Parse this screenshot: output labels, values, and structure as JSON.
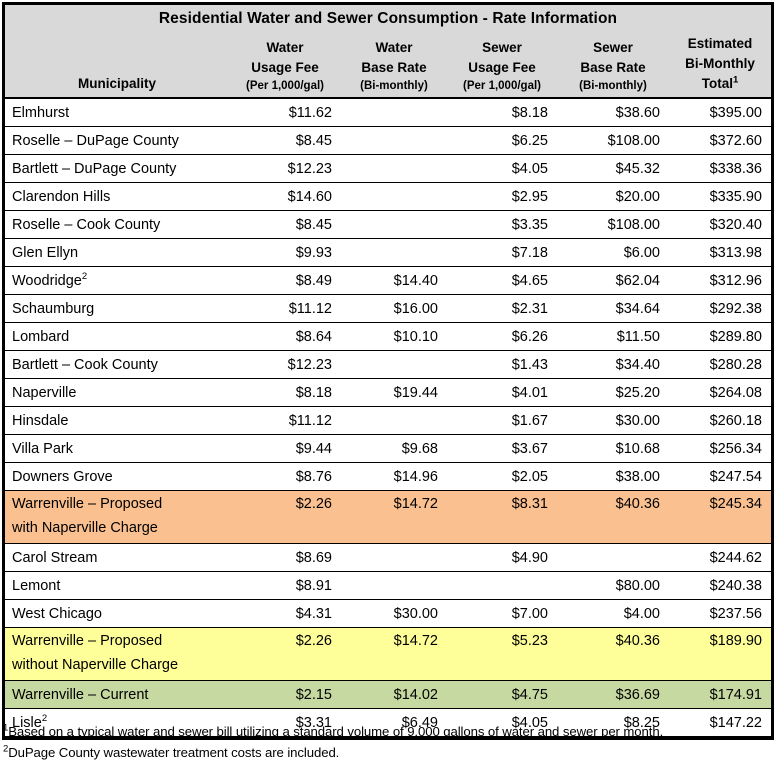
{
  "title": "Residential Water and Sewer Consumption - Rate Information",
  "header": {
    "columns": [
      {
        "lines": [
          "Municipality"
        ],
        "sup": ""
      },
      {
        "lines": [
          "Water",
          "Usage Fee",
          "(Per 1,000/gal)"
        ],
        "sup": ""
      },
      {
        "lines": [
          "Water",
          "Base Rate",
          "(Bi-monthly)"
        ],
        "sup": ""
      },
      {
        "lines": [
          "Sewer",
          "Usage Fee",
          "(Per 1,000/gal)"
        ],
        "sup": ""
      },
      {
        "lines": [
          "Sewer",
          "Base Rate",
          "(Bi-monthly)"
        ],
        "sup": ""
      },
      {
        "lines": [
          "Estimated",
          "Bi-Monthly",
          "Total"
        ],
        "sup": "1"
      }
    ]
  },
  "table": {
    "rows": [
      {
        "municipality": "Elmhurst",
        "sup": "",
        "water_usage": "$11.62",
        "water_base": "",
        "sewer_usage": "$8.18",
        "sewer_base": "$38.60",
        "total": "$395.00",
        "highlight": "none"
      },
      {
        "municipality": "Roselle – DuPage County",
        "sup": "",
        "water_usage": "$8.45",
        "water_base": "",
        "sewer_usage": "$6.25",
        "sewer_base": "$108.00",
        "total": "$372.60",
        "highlight": "none"
      },
      {
        "municipality": "Bartlett – DuPage County",
        "sup": "",
        "water_usage": "$12.23",
        "water_base": "",
        "sewer_usage": "$4.05",
        "sewer_base": "$45.32",
        "total": "$338.36",
        "highlight": "none"
      },
      {
        "municipality": "Clarendon Hills",
        "sup": "",
        "water_usage": "$14.60",
        "water_base": "",
        "sewer_usage": "$2.95",
        "sewer_base": "$20.00",
        "total": "$335.90",
        "highlight": "none"
      },
      {
        "municipality": "Roselle – Cook County",
        "sup": "",
        "water_usage": "$8.45",
        "water_base": "",
        "sewer_usage": "$3.35",
        "sewer_base": "$108.00",
        "total": "$320.40",
        "highlight": "none"
      },
      {
        "municipality": "Glen Ellyn",
        "sup": "",
        "water_usage": "$9.93",
        "water_base": "",
        "sewer_usage": "$7.18",
        "sewer_base": "$6.00",
        "total": "$313.98",
        "highlight": "none"
      },
      {
        "municipality": "Woodridge",
        "sup": "2",
        "water_usage": "$8.49",
        "water_base": "$14.40",
        "sewer_usage": "$4.65",
        "sewer_base": "$62.04",
        "total": "$312.96",
        "highlight": "none"
      },
      {
        "municipality": "Schaumburg",
        "sup": "",
        "water_usage": "$11.12",
        "water_base": "$16.00",
        "sewer_usage": "$2.31",
        "sewer_base": "$34.64",
        "total": "$292.38",
        "highlight": "none"
      },
      {
        "municipality": "Lombard",
        "sup": "",
        "water_usage": "$8.64",
        "water_base": "$10.10",
        "sewer_usage": "$6.26",
        "sewer_base": "$11.50",
        "total": "$289.80",
        "highlight": "none"
      },
      {
        "municipality": "Bartlett – Cook County",
        "sup": "",
        "water_usage": "$12.23",
        "water_base": "",
        "sewer_usage": "$1.43",
        "sewer_base": "$34.40",
        "total": "$280.28",
        "highlight": "none"
      },
      {
        "municipality": "Naperville",
        "sup": "",
        "water_usage": "$8.18",
        "water_base": "$19.44",
        "sewer_usage": "$4.01",
        "sewer_base": "$25.20",
        "total": "$264.08",
        "highlight": "none"
      },
      {
        "municipality": "Hinsdale",
        "sup": "",
        "water_usage": "$11.12",
        "water_base": "",
        "sewer_usage": "$1.67",
        "sewer_base": "$30.00",
        "total": "$260.18",
        "highlight": "none"
      },
      {
        "municipality": "Villa Park",
        "sup": "",
        "water_usage": "$9.44",
        "water_base": "$9.68",
        "sewer_usage": "$3.67",
        "sewer_base": "$10.68",
        "total": "$256.34",
        "highlight": "none"
      },
      {
        "municipality": "Downers Grove",
        "sup": "",
        "water_usage": "$8.76",
        "water_base": "$14.96",
        "sewer_usage": "$2.05",
        "sewer_base": "$38.00",
        "total": "$247.54",
        "highlight": "none"
      },
      {
        "municipality": "Warrenville – Proposed\nwith Naperville Charge",
        "sup": "",
        "water_usage": "$2.26",
        "water_base": "$14.72",
        "sewer_usage": "$8.31",
        "sewer_base": "$40.36",
        "total": "$245.34",
        "highlight": "orange"
      },
      {
        "municipality": "Carol Stream",
        "sup": "",
        "water_usage": "$8.69",
        "water_base": "",
        "sewer_usage": "$4.90",
        "sewer_base": "",
        "total": "$244.62",
        "highlight": "none"
      },
      {
        "municipality": "Lemont",
        "sup": "",
        "water_usage": "$8.91",
        "water_base": "",
        "sewer_usage": "",
        "sewer_base": "$80.00",
        "total": "$240.38",
        "highlight": "none"
      },
      {
        "municipality": "West Chicago",
        "sup": "",
        "water_usage": "$4.31",
        "water_base": "$30.00",
        "sewer_usage": "$7.00",
        "sewer_base": "$4.00",
        "total": "$237.56",
        "highlight": "none"
      },
      {
        "municipality": "Warrenville – Proposed\nwithout Naperville Charge",
        "sup": "",
        "water_usage": "$2.26",
        "water_base": "$14.72",
        "sewer_usage": "$5.23",
        "sewer_base": "$40.36",
        "total": "$189.90",
        "highlight": "yellow"
      },
      {
        "municipality": "Warrenville –  Current",
        "sup": "",
        "water_usage": "$2.15",
        "water_base": "$14.02",
        "sewer_usage": "$4.75",
        "sewer_base": "$36.69",
        "total": "$174.91",
        "highlight": "green"
      },
      {
        "municipality": "Lisle",
        "sup": "2",
        "water_usage": "$3.31",
        "water_base": "$6.49",
        "sewer_usage": "$4.05",
        "sewer_base": "$8.25",
        "total": "$147.22",
        "highlight": "none"
      }
    ]
  },
  "footnotes": [
    {
      "sup": "1",
      "text": "Based on a typical water and sewer bill utilizing a standard volume of 9,000 gallons of water and sewer per month."
    },
    {
      "sup": "2",
      "text": "DuPage County wastewater treatment costs are included."
    }
  ],
  "colors": {
    "header_bg": "#D9D9D9",
    "orange_row": "#FAC090",
    "yellow_row": "#FFFF99",
    "green_row": "#C6D9A0",
    "border": "#000000",
    "page_bg": "#FFFFFF"
  }
}
